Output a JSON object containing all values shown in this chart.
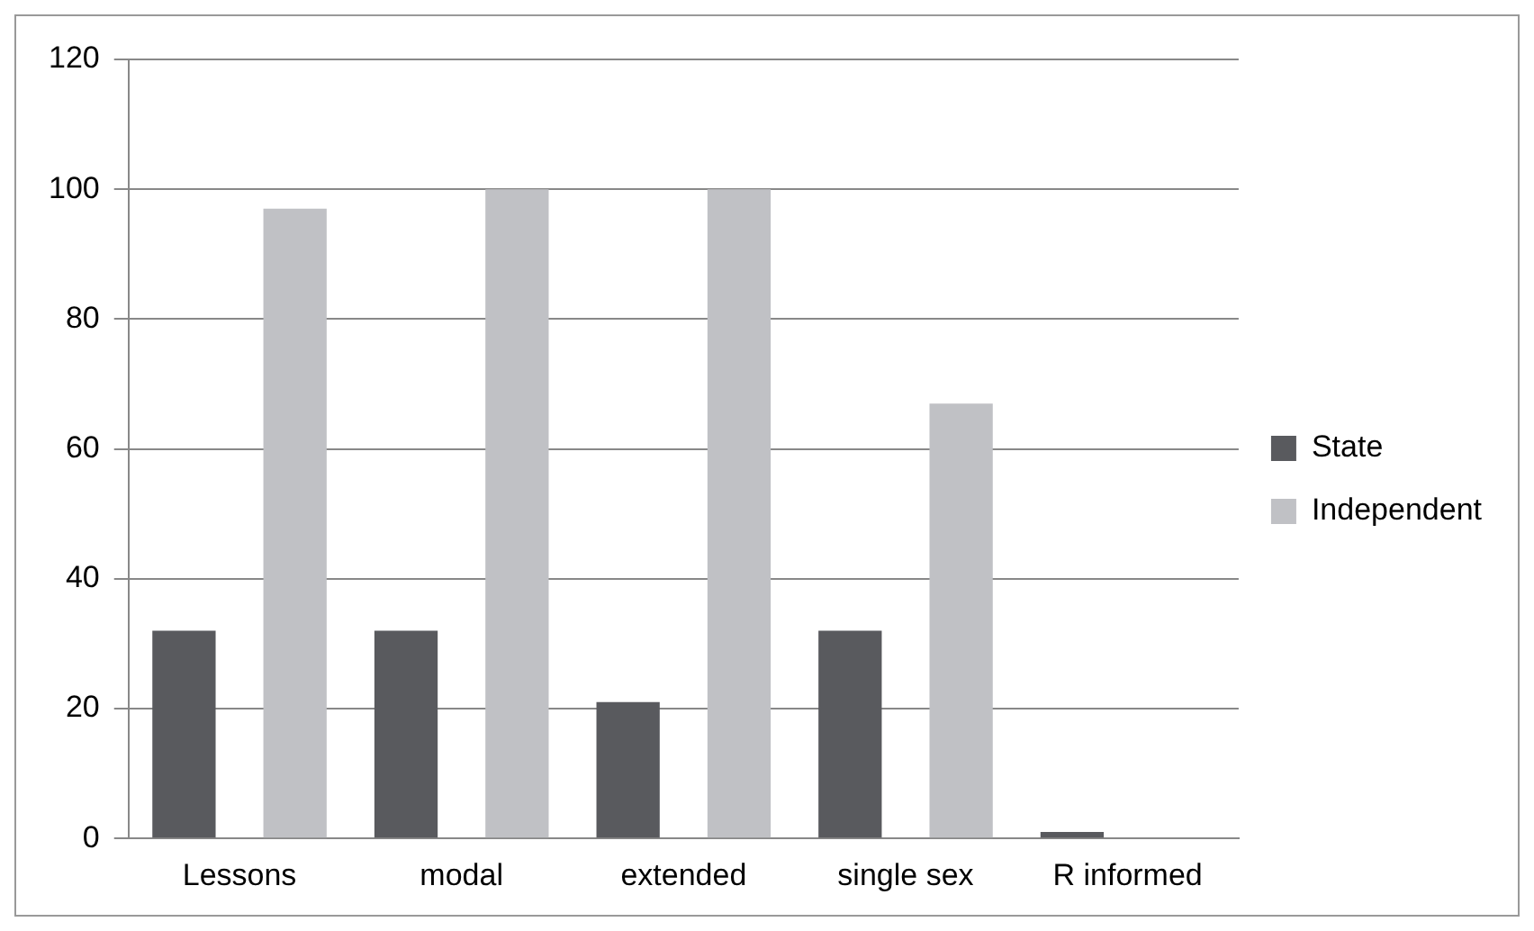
{
  "chart_data": {
    "type": "bar",
    "categories": [
      "Lessons",
      "modal",
      "extended",
      "single sex",
      "R informed"
    ],
    "series": [
      {
        "name": "State",
        "color": "#595a5e",
        "values": [
          32,
          32,
          21,
          32,
          1
        ]
      },
      {
        "name": "Independent",
        "color": "#c0c1c5",
        "values": [
          97,
          100,
          100,
          67,
          0
        ]
      }
    ],
    "ylim": [
      0,
      120
    ],
    "yticks": [
      0,
      20,
      40,
      60,
      80,
      100,
      120
    ],
    "grid": "y",
    "legend": "right"
  }
}
